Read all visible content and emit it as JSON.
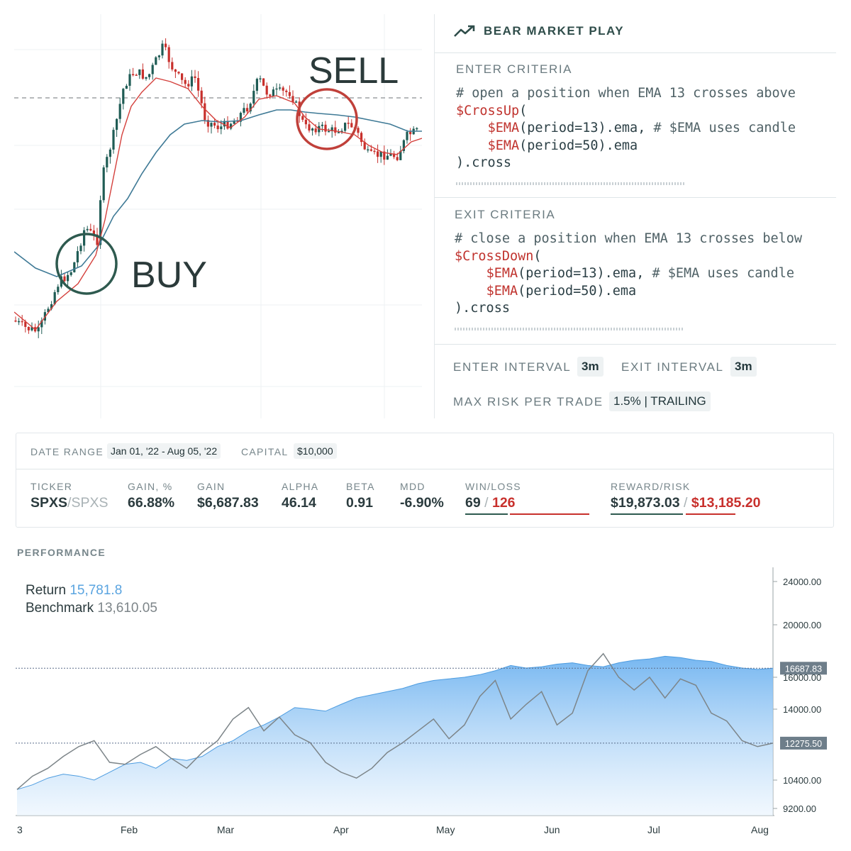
{
  "candle_chart": {
    "buy_label": "BUY",
    "sell_label": "SELL",
    "colors": {
      "up": "#1f5c55",
      "down": "#c8302c",
      "ema13": "#d4403c",
      "ema50": "#3f7a96",
      "buy": "#2e5a4f",
      "sell": "#c0403a"
    }
  },
  "strategy": {
    "title": "BEAR MARKET PLAY",
    "title_icon": "trending-up-icon",
    "enter": {
      "label": "ENTER CRITERIA",
      "comment": "# open a position when EMA 13 crosses above",
      "fn": "$CrossUp",
      "open_paren": "(",
      "arg1_ind": "$EMA",
      "arg1_rest": "(period=13).ema, ",
      "arg1_comment": "# $EMA uses candle",
      "arg2_ind": "$EMA",
      "arg2_rest": "(period=50).ema",
      "close": ").cross"
    },
    "exit": {
      "label": "EXIT CRITERIA",
      "comment": "# close a position when EMA 13 crosses below",
      "fn": "$CrossDown",
      "open_paren": "(",
      "arg1_ind": "$EMA",
      "arg1_rest": "(period=13).ema, ",
      "arg1_comment": "# $EMA uses candle",
      "arg2_ind": "$EMA",
      "arg2_rest": "(period=50).ema",
      "close": ").cross"
    },
    "enter_interval_label": "ENTER INTERVAL",
    "enter_interval": "3m",
    "exit_interval_label": "EXIT INTERVAL",
    "exit_interval": "3m",
    "max_risk_label": "MAX RISK PER TRADE",
    "max_risk": "1.5% | TRAILING"
  },
  "stats": {
    "date_range_label": "DATE RANGE",
    "date_range": "Jan 01, '22 - Aug 05, '22",
    "capital_label": "CAPITAL",
    "capital": "$10,000",
    "ticker_label": "TICKER",
    "ticker_main": "SPXS",
    "ticker_sep": "/",
    "ticker_bench": "SPXS",
    "gain_pct_label": "GAIN, %",
    "gain_pct": "66.88%",
    "gain_label": "GAIN",
    "gain": "$6,687.83",
    "alpha_label": "ALPHA",
    "alpha": "46.14",
    "beta_label": "BETA",
    "beta": "0.91",
    "mdd_label": "MDD",
    "mdd": "-6.90%",
    "winloss_label": "WIN/LOSS",
    "wins": "69",
    "winloss_sep": " / ",
    "losses": "126",
    "reward_risk_label": "REWARD/RISK",
    "reward": "$19,873.03",
    "reward_sep": " / ",
    "risk": "$13,185.20",
    "colors": {
      "win": "#2e5a4f",
      "loss": "#c8302c"
    }
  },
  "performance": {
    "label": "PERFORMANCE",
    "return_label": "Return",
    "return_value": "15,781.8",
    "benchmark_label": "Benchmark",
    "benchmark_value": "13,610.05",
    "colors": {
      "area": "#6fb3f0",
      "return_text": "#5aa4e0",
      "benchmark": "#7d8589"
    }
  },
  "chart_data": {
    "type": "area",
    "x_tick_labels": [
      "3",
      "Feb",
      "Mar",
      "Apr",
      "May",
      "Jun",
      "Jul",
      "Aug"
    ],
    "y_tick_labels": [
      "24000.00",
      "20000.00",
      "16000.00",
      "14000.00",
      "10400.00",
      "9200.00"
    ],
    "ylim": [
      9200,
      24000
    ],
    "markers": [
      {
        "label": "16687.83",
        "value": 16687.83
      },
      {
        "label": "12275.50",
        "value": 12275.5
      }
    ],
    "series": [
      {
        "name": "Return",
        "type": "area",
        "values": [
          10000,
          10200,
          10500,
          10700,
          10600,
          10400,
          10800,
          11200,
          11300,
          11000,
          11500,
          11400,
          11600,
          12100,
          12400,
          12900,
          13200,
          13600,
          14100,
          14000,
          13900,
          14300,
          14700,
          14900,
          15100,
          15300,
          15600,
          15800,
          15900,
          16000,
          16200,
          16500,
          16900,
          16700,
          16800,
          17000,
          17100,
          16900,
          16800,
          17100,
          17300,
          17400,
          17600,
          17500,
          17300,
          17200,
          16900,
          16700,
          16600,
          16687.83
        ]
      },
      {
        "name": "Benchmark",
        "type": "line",
        "values": [
          10000,
          10600,
          11000,
          11600,
          12100,
          12400,
          11300,
          11200,
          11700,
          12100,
          11500,
          11000,
          11800,
          12400,
          13500,
          14100,
          12900,
          13600,
          12700,
          12300,
          11300,
          10800,
          10500,
          11000,
          11800,
          12300,
          12900,
          13500,
          12500,
          13200,
          14800,
          15800,
          13500,
          14300,
          15100,
          13200,
          13800,
          16500,
          17800,
          16000,
          15200,
          16000,
          14700,
          15900,
          15500,
          13800,
          13400,
          12400,
          12100,
          12275.5
        ]
      }
    ]
  }
}
